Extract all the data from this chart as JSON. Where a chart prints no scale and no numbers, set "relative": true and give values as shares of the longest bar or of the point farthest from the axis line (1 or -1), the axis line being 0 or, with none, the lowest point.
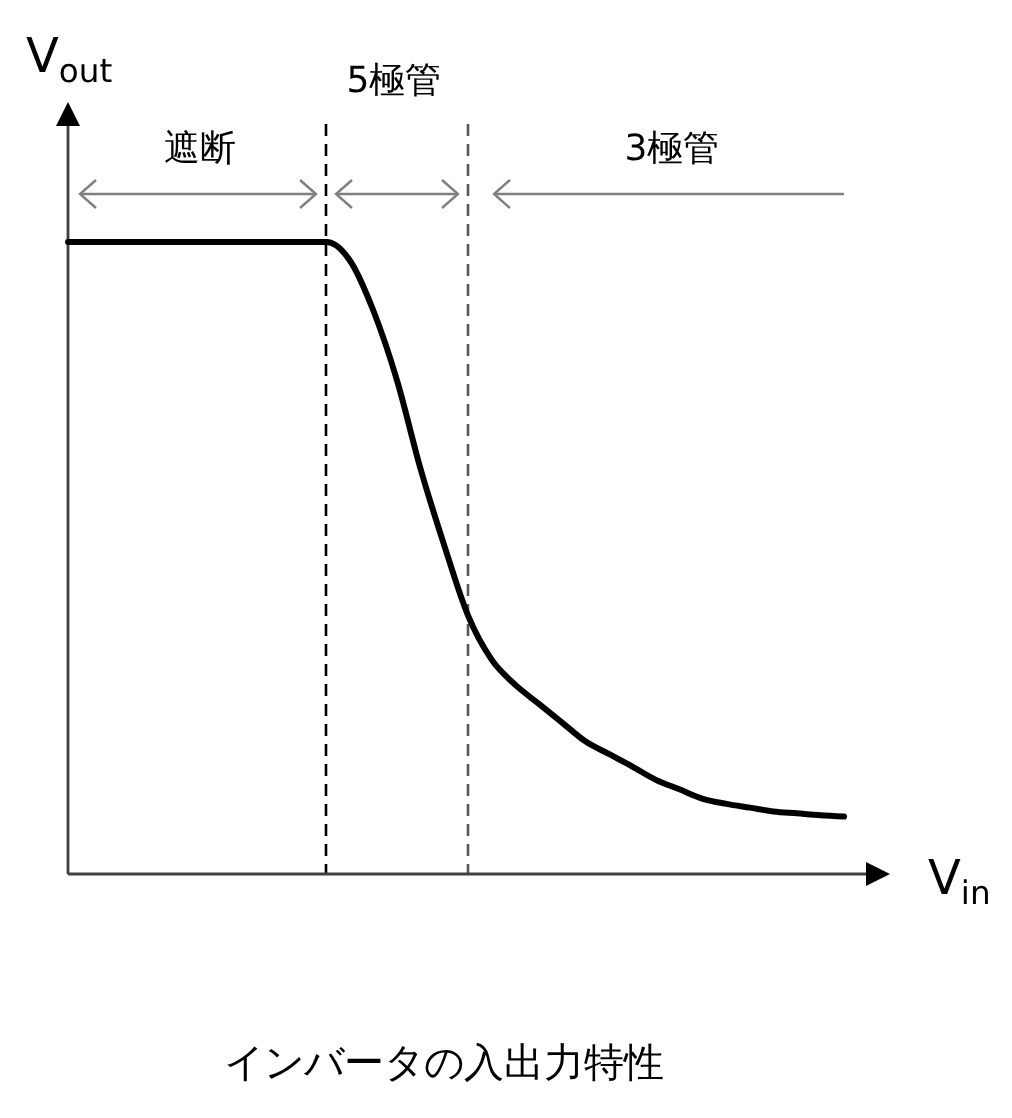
{
  "chart_data": {
    "type": "line",
    "title": "インバータの入出力特性",
    "xlabel": "V$_{in}$",
    "ylabel": "V$_{out}$",
    "relative": true,
    "categories": [
      null,
      null,
      null,
      null,
      null,
      null,
      null,
      null,
      null,
      null,
      null,
      null,
      null,
      null,
      null,
      null,
      null,
      null,
      null,
      null,
      null,
      null,
      null,
      null,
      null,
      null,
      null,
      null,
      null,
      null,
      null,
      null,
      null,
      null
    ],
    "series": [
      {
        "color": "#000000",
        "values": [
          1,
          1,
          1,
          1,
          1,
          1,
          1,
          1,
          1,
          1,
          1,
          1,
          0.97,
          0.89,
          0.78,
          0.64,
          0.52,
          0.41,
          0.34,
          0.3,
          0.27,
          0.24,
          0.21,
          0.19,
          0.17,
          0.149,
          0.134,
          0.119,
          0.111,
          0.105,
          0.099,
          0.096,
          0.093,
          0.091
        ]
      }
    ],
    "annotations": [
      "遮断",
      "5極管",
      "3極管"
    ]
  }
}
